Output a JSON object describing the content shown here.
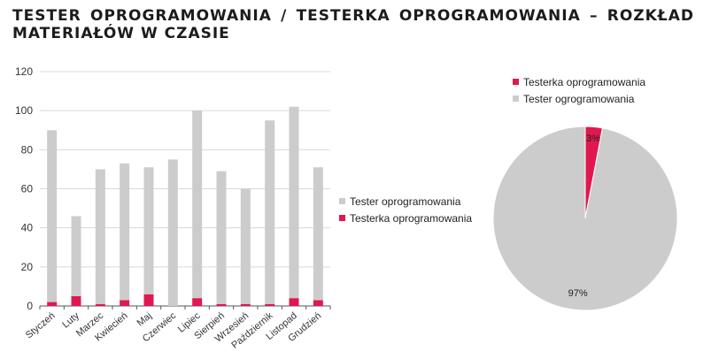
{
  "title": "TESTER OPROGRAMOWANIA / TESTERKA OPROGRAMOWANIA – ROZKŁAD MATERIAŁÓW W CZASIE",
  "colors": {
    "female": "#e0184f",
    "male": "#cccccc",
    "axis": "#555555",
    "grid": "#d9d9d9"
  },
  "chart_data": [
    {
      "type": "bar",
      "stacked": true,
      "categories": [
        "Styczeń",
        "Luty",
        "Marzec",
        "Kwiecień",
        "Maj",
        "Czerwiec",
        "Lipiec",
        "Sierpień",
        "Wrzesień",
        "Październik",
        "Listopad",
        "Grudzień"
      ],
      "series": [
        {
          "name": "Testerka oprogramowania",
          "color": "#e0184f",
          "values": [
            2,
            5,
            1,
            3,
            6,
            0,
            4,
            1,
            1,
            1,
            4,
            3
          ]
        },
        {
          "name": "Tester oprogramowania",
          "color": "#cccccc",
          "values": [
            88,
            41,
            69,
            70,
            65,
            75,
            96,
            68,
            59,
            94,
            98,
            68
          ]
        }
      ],
      "yticks": [
        "0",
        "20",
        "40",
        "60",
        "80",
        "100",
        "120"
      ],
      "ylim": [
        0,
        120
      ],
      "grid": true,
      "legend": {
        "position": "right",
        "items": [
          "Tester oprogramowania",
          "Testerka oprogramowania"
        ]
      }
    },
    {
      "type": "pie",
      "slices": [
        {
          "label": "Testerka oprogramowania",
          "value": 3,
          "text": "3%",
          "color": "#e0184f"
        },
        {
          "label": "Tester ogrogramowania",
          "value": 97,
          "text": "97%",
          "color": "#cccccc"
        }
      ],
      "legend": {
        "position": "top",
        "items": [
          "Testerka oprogramowania",
          "Tester ogrogramowania"
        ]
      }
    }
  ]
}
